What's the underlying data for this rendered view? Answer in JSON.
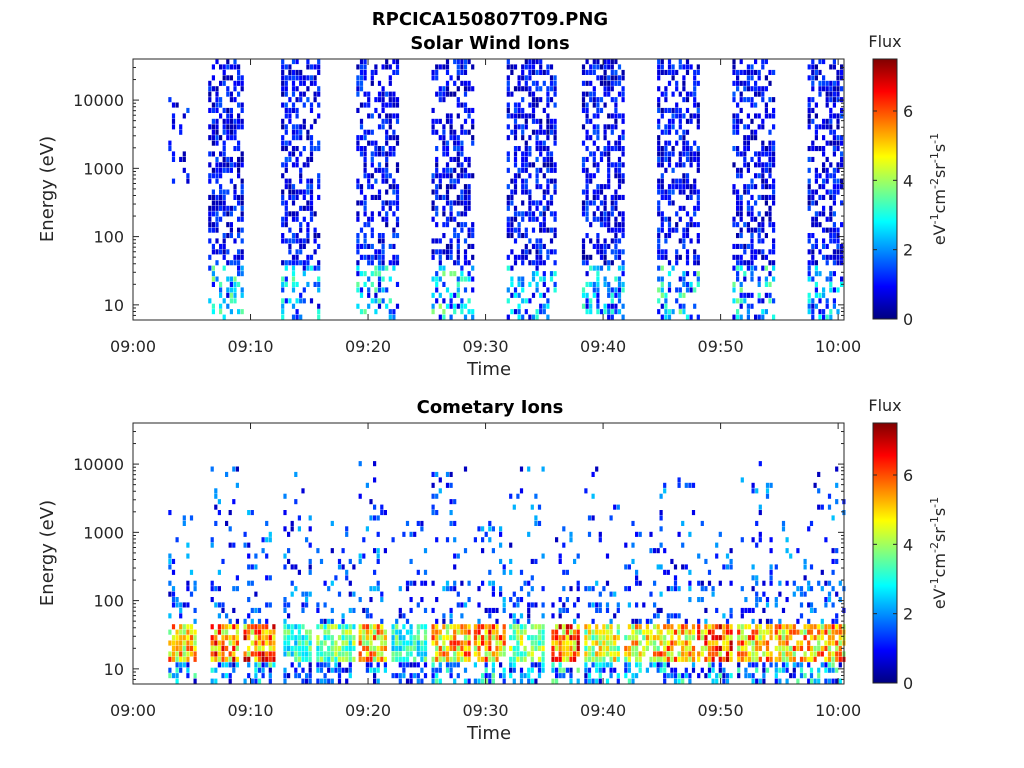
{
  "figure_title": "RPCICA150807T09.PNG",
  "colorbar": {
    "label": "Flux",
    "unit_base": "eV",
    "unit_sup1": "-1",
    "unit_cm": "cm",
    "unit_sup2": "-2",
    "unit_sr": "sr",
    "unit_sup3": "-1",
    "unit_s": "s",
    "unit_sup4": "-1",
    "ticks": [
      "0",
      "2",
      "4",
      "6"
    ],
    "range": [
      0,
      7.5
    ],
    "colormap": "jet"
  },
  "chart_data": [
    {
      "type": "heatmap",
      "title": "Solar Wind Ions",
      "xlabel": "Time",
      "ylabel": "Energy (eV)",
      "x_tick_labels": [
        "09:00",
        "09:10",
        "09:20",
        "09:30",
        "09:40",
        "09:50",
        "10:00"
      ],
      "x_ticks_minutes": [
        0,
        10,
        20,
        30,
        40,
        50,
        60
      ],
      "xlim_minutes": [
        0,
        60.5
      ],
      "y_scale": "log",
      "y_tick_labels": [
        "10",
        "100",
        "1000",
        "10000"
      ],
      "y_ticks": [
        10,
        100,
        1000,
        10000
      ],
      "ylim": [
        6,
        40000
      ],
      "bursts": [
        {
          "start": 3.0,
          "end": 4.8,
          "emin": 600,
          "emax": 20000,
          "peak_flux": 1.3,
          "density": 0.25
        },
        {
          "start": 6.4,
          "end": 9.4,
          "emin": 6,
          "emax": 40000,
          "peak_flux": 3.3,
          "density": 0.55
        },
        {
          "start": 12.6,
          "end": 15.8,
          "emin": 6,
          "emax": 40000,
          "peak_flux": 3.0,
          "density": 0.5
        },
        {
          "start": 19.0,
          "end": 22.4,
          "emin": 6,
          "emax": 40000,
          "peak_flux": 3.0,
          "density": 0.5
        },
        {
          "start": 25.4,
          "end": 28.8,
          "emin": 6,
          "emax": 40000,
          "peak_flux": 3.4,
          "density": 0.5
        },
        {
          "start": 31.8,
          "end": 35.8,
          "emin": 6,
          "emax": 40000,
          "peak_flux": 2.6,
          "density": 0.55
        },
        {
          "start": 38.2,
          "end": 41.8,
          "emin": 6,
          "emax": 40000,
          "peak_flux": 2.8,
          "density": 0.55
        },
        {
          "start": 44.6,
          "end": 48.2,
          "emin": 6,
          "emax": 40000,
          "peak_flux": 3.2,
          "density": 0.55
        },
        {
          "start": 51.0,
          "end": 54.6,
          "emin": 6,
          "emax": 40000,
          "peak_flux": 3.2,
          "density": 0.55
        },
        {
          "start": 57.4,
          "end": 60.4,
          "emin": 6,
          "emax": 40000,
          "peak_flux": 2.6,
          "density": 0.55
        }
      ]
    },
    {
      "type": "heatmap",
      "title": "Cometary Ions",
      "xlabel": "Time",
      "ylabel": "Energy (eV)",
      "x_tick_labels": [
        "09:00",
        "09:10",
        "09:20",
        "09:30",
        "09:40",
        "09:50",
        "10:00"
      ],
      "x_ticks_minutes": [
        0,
        10,
        20,
        30,
        40,
        50,
        60
      ],
      "xlim_minutes": [
        0,
        60.5
      ],
      "y_scale": "log",
      "y_tick_labels": [
        "10",
        "100",
        "1000",
        "10000"
      ],
      "y_ticks": [
        10,
        100,
        1000,
        10000
      ],
      "ylim": [
        6,
        40000
      ],
      "bursts": [
        {
          "start": 3.0,
          "end": 5.4,
          "emin": 6,
          "emax": 2000,
          "peak_flux": 6.5,
          "density": 0.35
        },
        {
          "start": 6.6,
          "end": 8.8,
          "emin": 6,
          "emax": 9000,
          "peak_flux": 7.0,
          "density": 0.4
        },
        {
          "start": 9.4,
          "end": 12.0,
          "emin": 6,
          "emax": 2000,
          "peak_flux": 7.2,
          "density": 0.35
        },
        {
          "start": 12.8,
          "end": 15.2,
          "emin": 6,
          "emax": 9000,
          "peak_flux": 4.0,
          "density": 0.3
        },
        {
          "start": 15.6,
          "end": 18.8,
          "emin": 6,
          "emax": 1500,
          "peak_flux": 4.5,
          "density": 0.3
        },
        {
          "start": 19.2,
          "end": 21.6,
          "emin": 6,
          "emax": 11000,
          "peak_flux": 6.5,
          "density": 0.4
        },
        {
          "start": 22.0,
          "end": 25.0,
          "emin": 6,
          "emax": 1500,
          "peak_flux": 4.0,
          "density": 0.3
        },
        {
          "start": 25.4,
          "end": 28.6,
          "emin": 6,
          "emax": 10000,
          "peak_flux": 6.5,
          "density": 0.4
        },
        {
          "start": 29.0,
          "end": 31.6,
          "emin": 6,
          "emax": 1500,
          "peak_flux": 6.8,
          "density": 0.35
        },
        {
          "start": 32.0,
          "end": 35.0,
          "emin": 6,
          "emax": 9000,
          "peak_flux": 5.0,
          "density": 0.35
        },
        {
          "start": 35.6,
          "end": 38.0,
          "emin": 6,
          "emax": 1500,
          "peak_flux": 7.2,
          "density": 0.35
        },
        {
          "start": 38.4,
          "end": 41.4,
          "emin": 6,
          "emax": 9000,
          "peak_flux": 5.5,
          "density": 0.35
        },
        {
          "start": 41.8,
          "end": 44.6,
          "emin": 6,
          "emax": 1500,
          "peak_flux": 6.0,
          "density": 0.35
        },
        {
          "start": 44.8,
          "end": 47.8,
          "emin": 6,
          "emax": 10000,
          "peak_flux": 6.5,
          "density": 0.35
        },
        {
          "start": 48.0,
          "end": 51.0,
          "emin": 6,
          "emax": 1500,
          "peak_flux": 7.2,
          "density": 0.35
        },
        {
          "start": 51.4,
          "end": 54.4,
          "emin": 6,
          "emax": 11000,
          "peak_flux": 6.5,
          "density": 0.35
        },
        {
          "start": 54.6,
          "end": 57.4,
          "emin": 6,
          "emax": 1500,
          "peak_flux": 6.5,
          "density": 0.35
        },
        {
          "start": 57.6,
          "end": 60.4,
          "emin": 6,
          "emax": 10000,
          "peak_flux": 6.8,
          "density": 0.4
        }
      ]
    }
  ]
}
